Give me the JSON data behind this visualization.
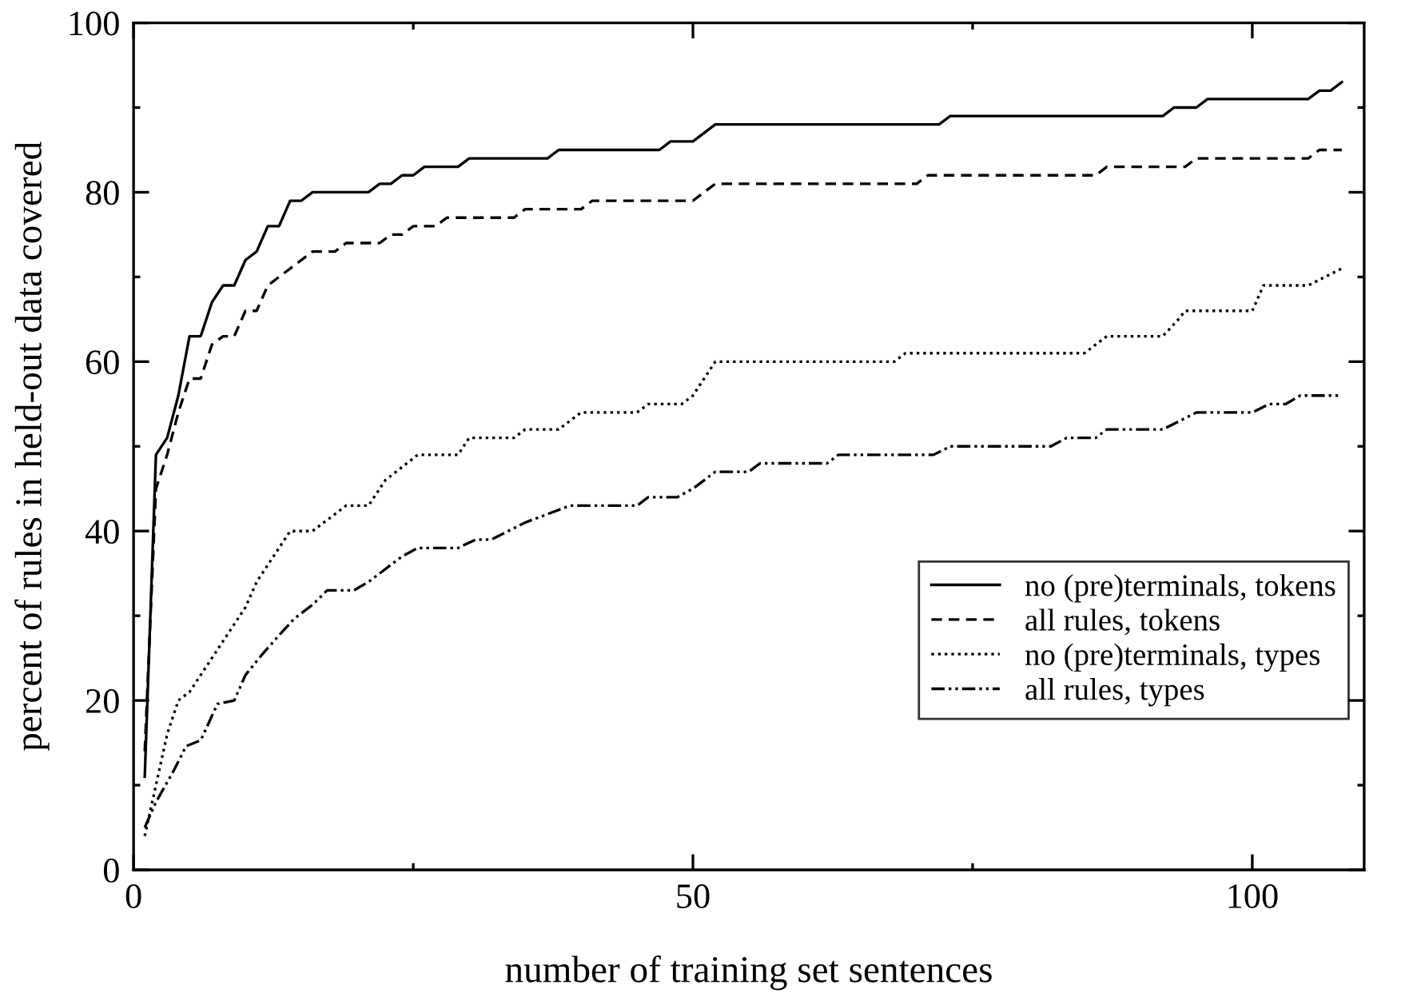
{
  "chart_data": {
    "type": "line",
    "xlabel": "number of training set sentences",
    "ylabel": "percent of rules in held-out data covered",
    "xlim": [
      0,
      110
    ],
    "ylim": [
      0,
      100
    ],
    "xticks": [
      0,
      {
        "value": 25,
        "label": null
      },
      50,
      {
        "value": 75,
        "label": null
      },
      100
    ],
    "yticks": [
      0,
      {
        "value": 10,
        "label": null
      },
      20,
      {
        "value": 30,
        "label": null
      },
      40,
      {
        "value": 50,
        "label": null
      },
      60,
      {
        "value": 70,
        "label": null
      },
      80,
      {
        "value": 90,
        "label": null
      },
      100
    ],
    "grid": false,
    "legend": "right",
    "marker": "none",
    "series": [
      {
        "name": "no (pre)terminals, tokens",
        "color": "#000000",
        "line_style": "solid",
        "x": [
          1,
          2,
          3,
          4,
          5,
          6,
          7,
          8,
          9,
          10,
          11,
          12,
          13,
          14,
          15,
          16,
          21,
          22,
          23,
          24,
          25,
          26,
          29,
          30,
          37,
          38,
          47,
          48,
          50,
          52,
          72,
          73,
          92,
          93,
          95,
          96,
          105,
          106,
          107,
          108
        ],
        "values": [
          11,
          49,
          51,
          56,
          63,
          63,
          67,
          69,
          69,
          72,
          73,
          76,
          76,
          79,
          79,
          80,
          80,
          81,
          81,
          82,
          82,
          83,
          83,
          84,
          84,
          85,
          85,
          86,
          86,
          88,
          88,
          89,
          89,
          90,
          90,
          91,
          91,
          92,
          92,
          93
        ]
      },
      {
        "name": "all rules, tokens",
        "color": "#000000",
        "line_style": "dashed",
        "x": [
          1,
          2,
          3,
          4,
          5,
          6,
          7,
          8,
          9,
          10,
          11,
          12,
          13,
          14,
          15,
          16,
          18,
          19,
          22,
          23,
          24,
          25,
          27,
          28,
          34,
          35,
          40,
          41,
          50,
          52,
          70,
          71,
          86,
          87,
          94,
          95,
          105,
          106,
          108
        ],
        "values": [
          14,
          45,
          49,
          54,
          58,
          58,
          62,
          63,
          63,
          66,
          66,
          69,
          70,
          71,
          72,
          73,
          73,
          74,
          74,
          75,
          75,
          76,
          76,
          77,
          77,
          78,
          78,
          79,
          79,
          81,
          81,
          82,
          82,
          83,
          83,
          84,
          84,
          85,
          85
        ]
      },
      {
        "name": "no (pre)terminals, types",
        "color": "#000000",
        "line_style": "dotted",
        "x": [
          1,
          2,
          3,
          4,
          5,
          7,
          8,
          10,
          11,
          12.5,
          14,
          16,
          18,
          19,
          21,
          22.5,
          25.4,
          29,
          30,
          34,
          35,
          38,
          40,
          45,
          46,
          49,
          50,
          52,
          68,
          69,
          85,
          86,
          87,
          92,
          93.4,
          94,
          100,
          101,
          105,
          108
        ],
        "values": [
          4,
          10,
          16,
          20,
          21,
          25,
          27,
          31,
          34,
          37,
          40,
          40,
          42,
          43,
          43,
          46,
          49,
          49,
          51,
          51,
          52,
          52,
          54,
          54,
          55,
          55,
          56,
          60,
          60,
          61,
          61,
          62,
          63,
          63,
          65,
          66,
          66,
          69,
          69,
          71
        ]
      },
      {
        "name": "all rules, types",
        "color": "#000000",
        "line_style": "dashdotdot",
        "x": [
          1,
          2,
          3.5,
          4.7,
          6,
          7.5,
          9,
          10,
          11.6,
          13,
          14.4,
          16,
          17.3,
          19.7,
          21,
          24,
          25.4,
          29,
          30.6,
          32,
          35,
          37,
          39,
          45,
          46,
          48.6,
          50,
          52,
          55,
          56,
          62,
          63,
          71.5,
          73,
          82,
          83.4,
          86,
          87,
          92,
          95,
          100,
          101.5,
          103,
          104.3,
          108
        ],
        "values": [
          5,
          8,
          11.5,
          14.6,
          15.3,
          19.6,
          20,
          23,
          25.6,
          27.7,
          29.7,
          31.3,
          33,
          33,
          34,
          37,
          38,
          38,
          39,
          39,
          41,
          42,
          43,
          43,
          44,
          44,
          45,
          47,
          47,
          48,
          48,
          49,
          49,
          50,
          50,
          51,
          51,
          52,
          52,
          54,
          54,
          55,
          55,
          56,
          56
        ]
      }
    ]
  }
}
